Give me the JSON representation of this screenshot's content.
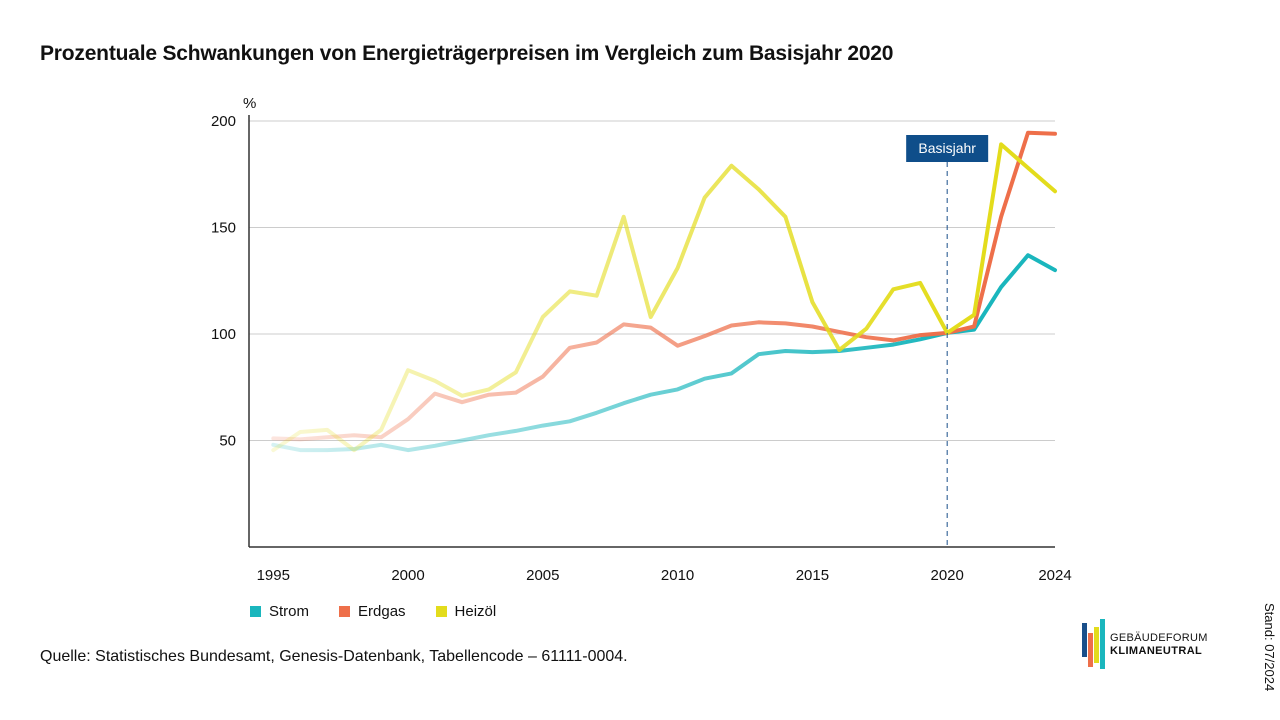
{
  "title": "Prozentuale Schwankungen von Energieträgerpreisen im Vergleich zum Basisjahr 2020",
  "source": "Quelle: Statistisches Bundesamt, Genesis-Datenbank, Tabellencode – 61111-0004.",
  "stand": "Stand: 07/2024",
  "logo": {
    "line1": "GEBÄUDEFORUM",
    "line2": "KLIMANEUTRAL"
  },
  "chart_data": {
    "type": "line",
    "title": "Prozentuale Schwankungen von Energieträgerpreisen im Vergleich zum Basisjahr 2020",
    "ylabel": "%",
    "xlabel": "",
    "xlim": [
      1994.1,
      2024
    ],
    "ylim": [
      0,
      200
    ],
    "yticks": [
      50,
      100,
      150,
      200
    ],
    "xticks": [
      1995,
      2000,
      2005,
      2010,
      2015,
      2020,
      2024
    ],
    "grid": true,
    "legend": "bottom-left",
    "annotation": {
      "label": "Basisjahr",
      "x": 2020
    },
    "x": [
      1995,
      1996,
      1997,
      1998,
      1999,
      2000,
      2001,
      2002,
      2003,
      2004,
      2005,
      2006,
      2007,
      2008,
      2009,
      2010,
      2011,
      2012,
      2013,
      2014,
      2015,
      2016,
      2017,
      2018,
      2019,
      2020,
      2021,
      2022,
      2023,
      2024
    ],
    "series": [
      {
        "name": "Strom",
        "color": "#1ab6bd",
        "values": [
          48,
          45.5,
          45.5,
          46,
          48,
          45.5,
          47.5,
          50,
          52.5,
          54.5,
          57,
          59,
          63,
          67.5,
          71.5,
          74,
          79,
          81.5,
          90.5,
          92,
          91.5,
          92,
          93.5,
          95,
          97.5,
          100.5,
          102,
          122,
          137,
          130
        ]
      },
      {
        "name": "Erdgas",
        "color": "#ee6f4a",
        "values": [
          51,
          50.5,
          51.5,
          52.5,
          51.5,
          60,
          72,
          68,
          71.5,
          72.5,
          80,
          93.5,
          96,
          104.5,
          103,
          94.5,
          99,
          104,
          105.5,
          105,
          103.5,
          101,
          98.5,
          97,
          99.5,
          100.5,
          103.5,
          155,
          194.5,
          194
        ]
      },
      {
        "name": "Heizöl",
        "color": "#e3dc1c",
        "values": [
          45.5,
          54,
          55,
          45.5,
          55,
          83,
          78,
          71,
          74,
          82,
          108,
          120,
          118,
          155,
          108,
          131,
          164,
          179,
          168,
          155,
          115,
          92.5,
          102.5,
          121,
          124,
          100.5,
          109,
          189,
          178,
          167
        ]
      }
    ]
  }
}
